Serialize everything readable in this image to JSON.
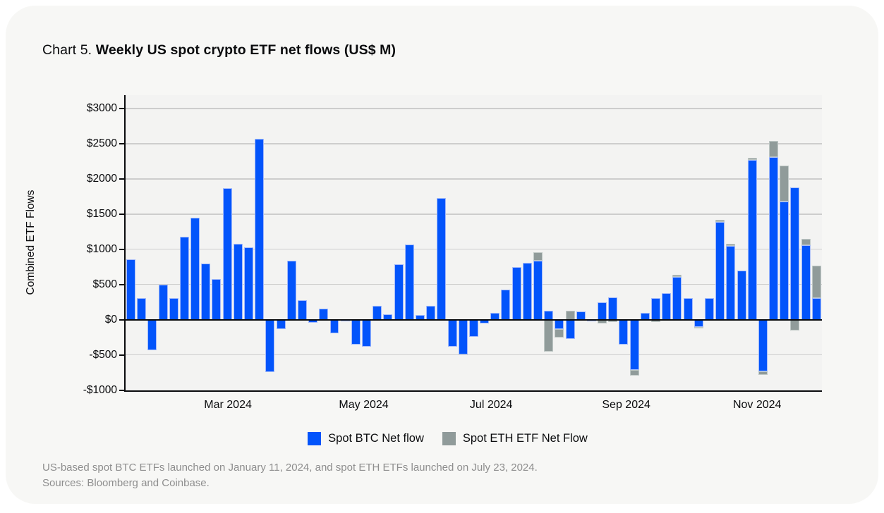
{
  "title": {
    "prefix": "Chart 5. ",
    "main": "Weekly US spot crypto ETF net flows (US$ M)"
  },
  "colors": {
    "btc": "#0254fb",
    "eth": "#909b9a",
    "plot_bg": "#f3f3f2",
    "card_bg": "#f7f7f5",
    "gridline": "#cdcdcd",
    "axis": "#0a0b0d",
    "footnote": "#8e8e8e"
  },
  "legend": [
    {
      "label": "Spot BTC Net flow",
      "color": "#0254fb"
    },
    {
      "label": "Spot ETH ETF Net Flow",
      "color": "#909b9a"
    }
  ],
  "footnotes": {
    "line1": "US-based spot BTC ETFs launched on January 11, 2024, and spot ETH ETFs launched on July 23, 2024.",
    "line2": "Sources: Bloomberg and Coinbase."
  },
  "chart_data": {
    "type": "bar",
    "stacked": true,
    "title": "Weekly US spot crypto ETF net flows (US$ M)",
    "xlabel": "",
    "ylabel": "Combined ETF Flows",
    "ylim": [
      -1000,
      3000
    ],
    "grid": true,
    "legend_position": "bottom",
    "y_ticks": [
      {
        "label": "$3000",
        "value": 3000
      },
      {
        "label": "$2500",
        "value": 2500
      },
      {
        "label": "$2000",
        "value": 2000
      },
      {
        "label": "$1500",
        "value": 1500
      },
      {
        "label": "$1000",
        "value": 1000
      },
      {
        "label": "$500",
        "value": 500
      },
      {
        "label": "$0",
        "value": 0
      },
      {
        "label": "-$500",
        "value": -500
      },
      {
        "label": "-$1000",
        "value": -1000
      }
    ],
    "gridline_values": [
      3000,
      2500,
      2000,
      1500,
      1000,
      500,
      -500
    ],
    "x_tick_labels": [
      {
        "label": "Mar 2024",
        "pos": 0.147
      },
      {
        "label": "May 2024",
        "pos": 0.342
      },
      {
        "label": "Jul 2024",
        "pos": 0.525
      },
      {
        "label": "Sep 2024",
        "pos": 0.719
      },
      {
        "label": "Nov 2024",
        "pos": 0.907
      }
    ],
    "x_unit": "week",
    "series": [
      {
        "name": "Spot BTC Net flow",
        "color": "#0254fb",
        "values": [
          860,
          310,
          -430,
          500,
          310,
          1180,
          1450,
          800,
          580,
          1865,
          1075,
          1025,
          2565,
          -740,
          -135,
          840,
          275,
          -40,
          160,
          -195,
          -25,
          -350,
          -385,
          195,
          75,
          785,
          1065,
          70,
          200,
          1725,
          -385,
          -490,
          -240,
          -50,
          95,
          430,
          750,
          810,
          840,
          130,
          -130,
          -270,
          120,
          -20,
          250,
          320,
          -350,
          -710,
          100,
          310,
          380,
          610,
          310,
          -100,
          310,
          1390,
          1050,
          700,
          2270,
          -730,
          2310,
          1675,
          1875,
          1060,
          305
        ]
      },
      {
        "name": "Spot ETH ETF Net Flow",
        "color": "#909b9a",
        "values": [
          0,
          0,
          0,
          0,
          0,
          0,
          0,
          0,
          0,
          0,
          0,
          0,
          0,
          0,
          0,
          0,
          0,
          0,
          0,
          0,
          0,
          0,
          0,
          0,
          0,
          0,
          0,
          0,
          0,
          0,
          0,
          0,
          0,
          0,
          0,
          0,
          0,
          0,
          115,
          -450,
          -120,
          130,
          0,
          0,
          -55,
          -30,
          0,
          -85,
          0,
          -30,
          0,
          25,
          0,
          -25,
          0,
          30,
          25,
          0,
          25,
          -55,
          225,
          510,
          -150,
          90,
          460
        ]
      }
    ]
  }
}
